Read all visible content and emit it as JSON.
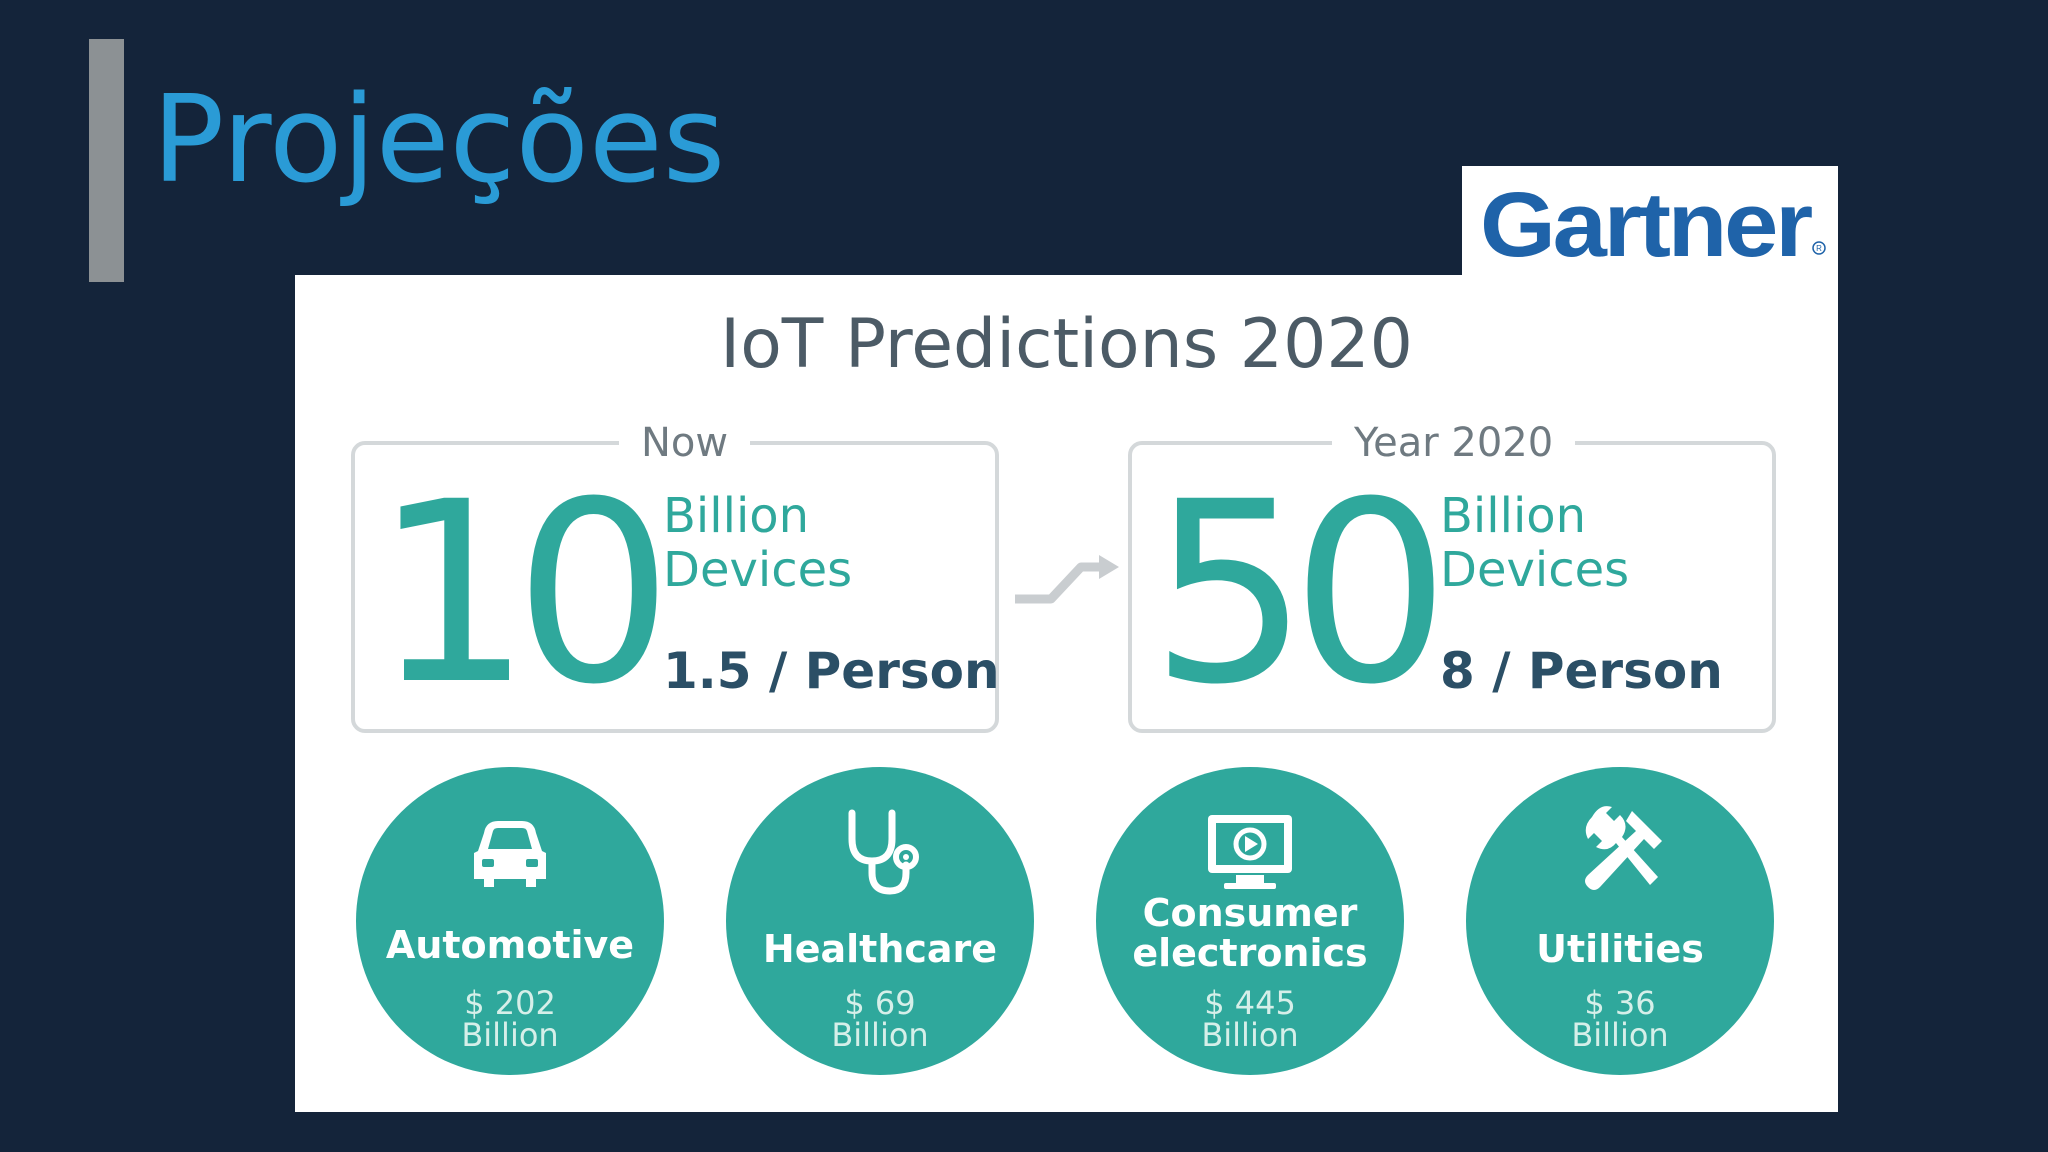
{
  "slide": {
    "title": "Projeções"
  },
  "logo": {
    "text": "Gartner",
    "color": "#1f63a9"
  },
  "infographic": {
    "title": "IoT Predictions 2020",
    "now": {
      "label": "Now",
      "number": "10",
      "unit_line1": "Billion",
      "unit_line2": "Devices",
      "per_person": "1.5 / Person"
    },
    "future": {
      "label": "Year 2020",
      "number": "50",
      "unit_line1": "Billion",
      "unit_line2": "Devices",
      "per_person": "8 / Person"
    },
    "sectors": [
      {
        "name": "Automotive",
        "value": "$ 202",
        "unit": "Billion",
        "icon": "car-icon"
      },
      {
        "name": "Healthcare",
        "value": "$ 69",
        "unit": "Billion",
        "icon": "stethoscope-icon"
      },
      {
        "name_line1": "Consumer",
        "name_line2": "electronics",
        "value": "$ 445",
        "unit": "Billion",
        "icon": "monitor-play-icon"
      },
      {
        "name": "Utilities",
        "value": "$ 36",
        "unit": "Billion",
        "icon": "tools-icon"
      }
    ],
    "accent_color": "#2fa89c",
    "text_color": "#2b4f66"
  }
}
